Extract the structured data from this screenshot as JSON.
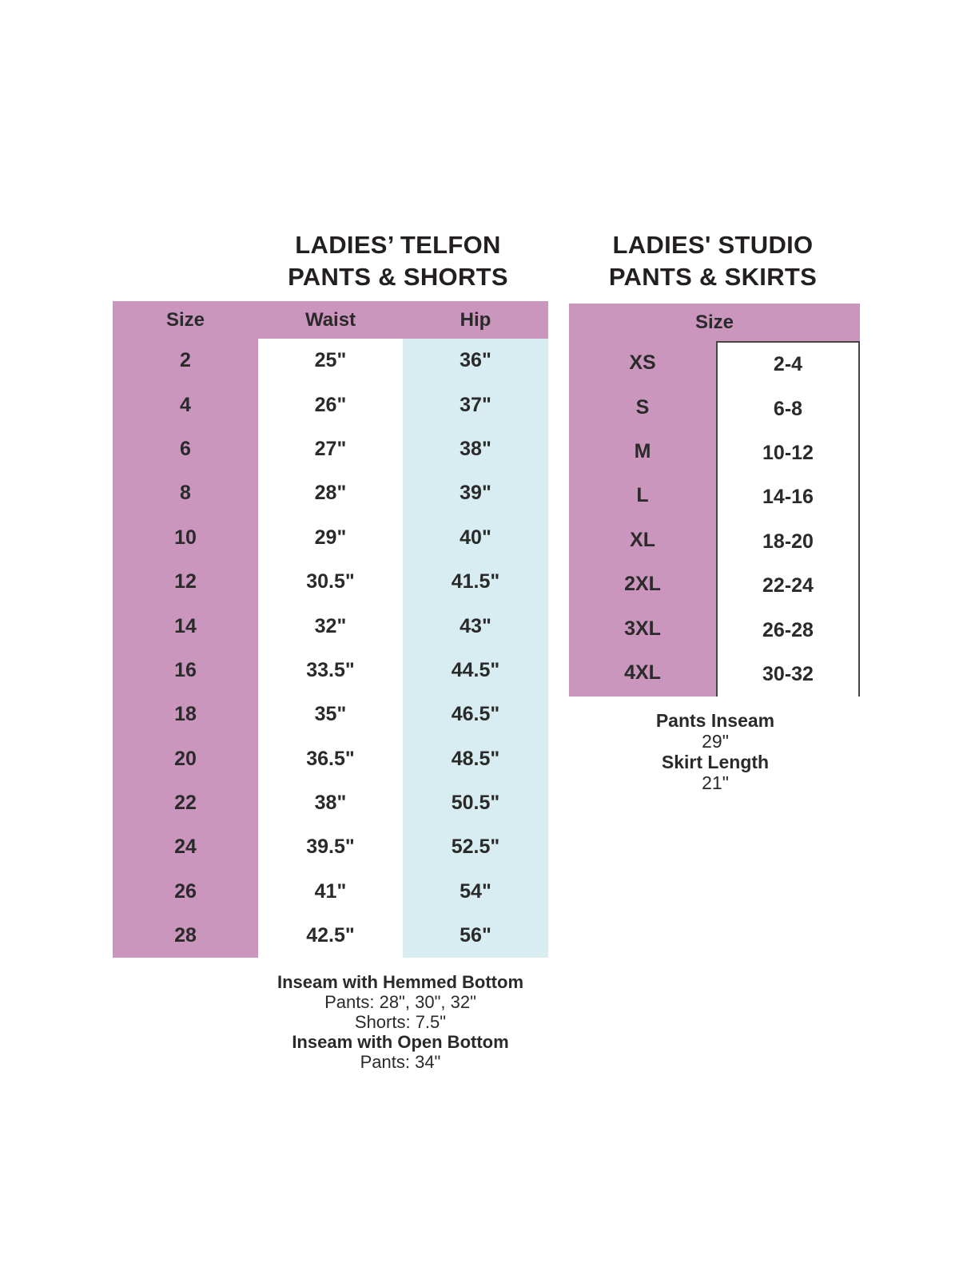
{
  "colors": {
    "pink": "#cb96bd",
    "light_blue": "#d8edf1",
    "border_dark": "#454545",
    "text": "#2b2a2a",
    "title_text": "#231f20"
  },
  "left_table": {
    "title_line1": "LADIES’ TELFON",
    "title_line2": "PANTS & SHORTS",
    "columns": [
      "Size",
      "Waist",
      "Hip"
    ],
    "rows": [
      {
        "size": "2",
        "waist": "25\"",
        "hip": "36\""
      },
      {
        "size": "4",
        "waist": "26\"",
        "hip": "37\""
      },
      {
        "size": "6",
        "waist": "27\"",
        "hip": "38\""
      },
      {
        "size": "8",
        "waist": "28\"",
        "hip": "39\""
      },
      {
        "size": "10",
        "waist": "29\"",
        "hip": "40\""
      },
      {
        "size": "12",
        "waist": "30.5\"",
        "hip": "41.5\""
      },
      {
        "size": "14",
        "waist": "32\"",
        "hip": "43\""
      },
      {
        "size": "16",
        "waist": "33.5\"",
        "hip": "44.5\""
      },
      {
        "size": "18",
        "waist": "35\"",
        "hip": "46.5\""
      },
      {
        "size": "20",
        "waist": "36.5\"",
        "hip": "48.5\""
      },
      {
        "size": "22",
        "waist": "38\"",
        "hip": "50.5\""
      },
      {
        "size": "24",
        "waist": "39.5\"",
        "hip": "52.5\""
      },
      {
        "size": "26",
        "waist": "41\"",
        "hip": "54\""
      },
      {
        "size": "28",
        "waist": "42.5\"",
        "hip": "56\""
      }
    ],
    "footnotes": [
      {
        "text": "Inseam with Hemmed Bottom",
        "bold": true
      },
      {
        "text": "Pants: 28\", 30\", 32\"",
        "bold": false
      },
      {
        "text": "Shorts: 7.5\"",
        "bold": false
      },
      {
        "text": "Inseam with Open Bottom",
        "bold": true
      },
      {
        "text": "Pants: 34\"",
        "bold": false
      }
    ]
  },
  "right_table": {
    "title_line1": "LADIES' STUDIO",
    "title_line2": "PANTS & SKIRTS",
    "column_header": "Size",
    "rows": [
      {
        "size": "XS",
        "range": "2-4"
      },
      {
        "size": "S",
        "range": "6-8"
      },
      {
        "size": "M",
        "range": "10-12"
      },
      {
        "size": "L",
        "range": "14-16"
      },
      {
        "size": "XL",
        "range": "18-20"
      },
      {
        "size": "2XL",
        "range": "22-24"
      },
      {
        "size": "3XL",
        "range": "26-28"
      },
      {
        "size": "4XL",
        "range": "30-32"
      }
    ],
    "footnotes": [
      {
        "text": "Pants Inseam",
        "bold": true
      },
      {
        "text": "29\"",
        "bold": false
      },
      {
        "text": "Skirt Length",
        "bold": true
      },
      {
        "text": "21\"",
        "bold": false
      }
    ]
  }
}
